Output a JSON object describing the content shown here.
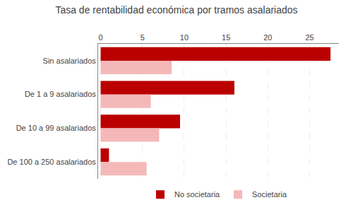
{
  "chart_data": {
    "type": "bar",
    "orientation": "horizontal",
    "title": "Tasa de rentabilidad económica por tramos asalariados",
    "categories": [
      "Sin asalariados",
      "De 1 a 9 asalariados",
      "De 10 a 99 asalariados",
      "De 100 a 250 asalariados"
    ],
    "series": [
      {
        "name": "No societaria",
        "color": "#bb0000",
        "values": [
          27.5,
          16.0,
          9.5,
          1.0
        ]
      },
      {
        "name": "Societaria",
        "color": "#f4b8b8",
        "values": [
          8.5,
          6.0,
          7.0,
          5.5
        ]
      }
    ],
    "xlim": [
      -0.3,
      28.5
    ],
    "xticks": [
      0,
      5,
      10,
      15,
      20,
      25
    ],
    "grid": true,
    "legend": "bottom"
  }
}
